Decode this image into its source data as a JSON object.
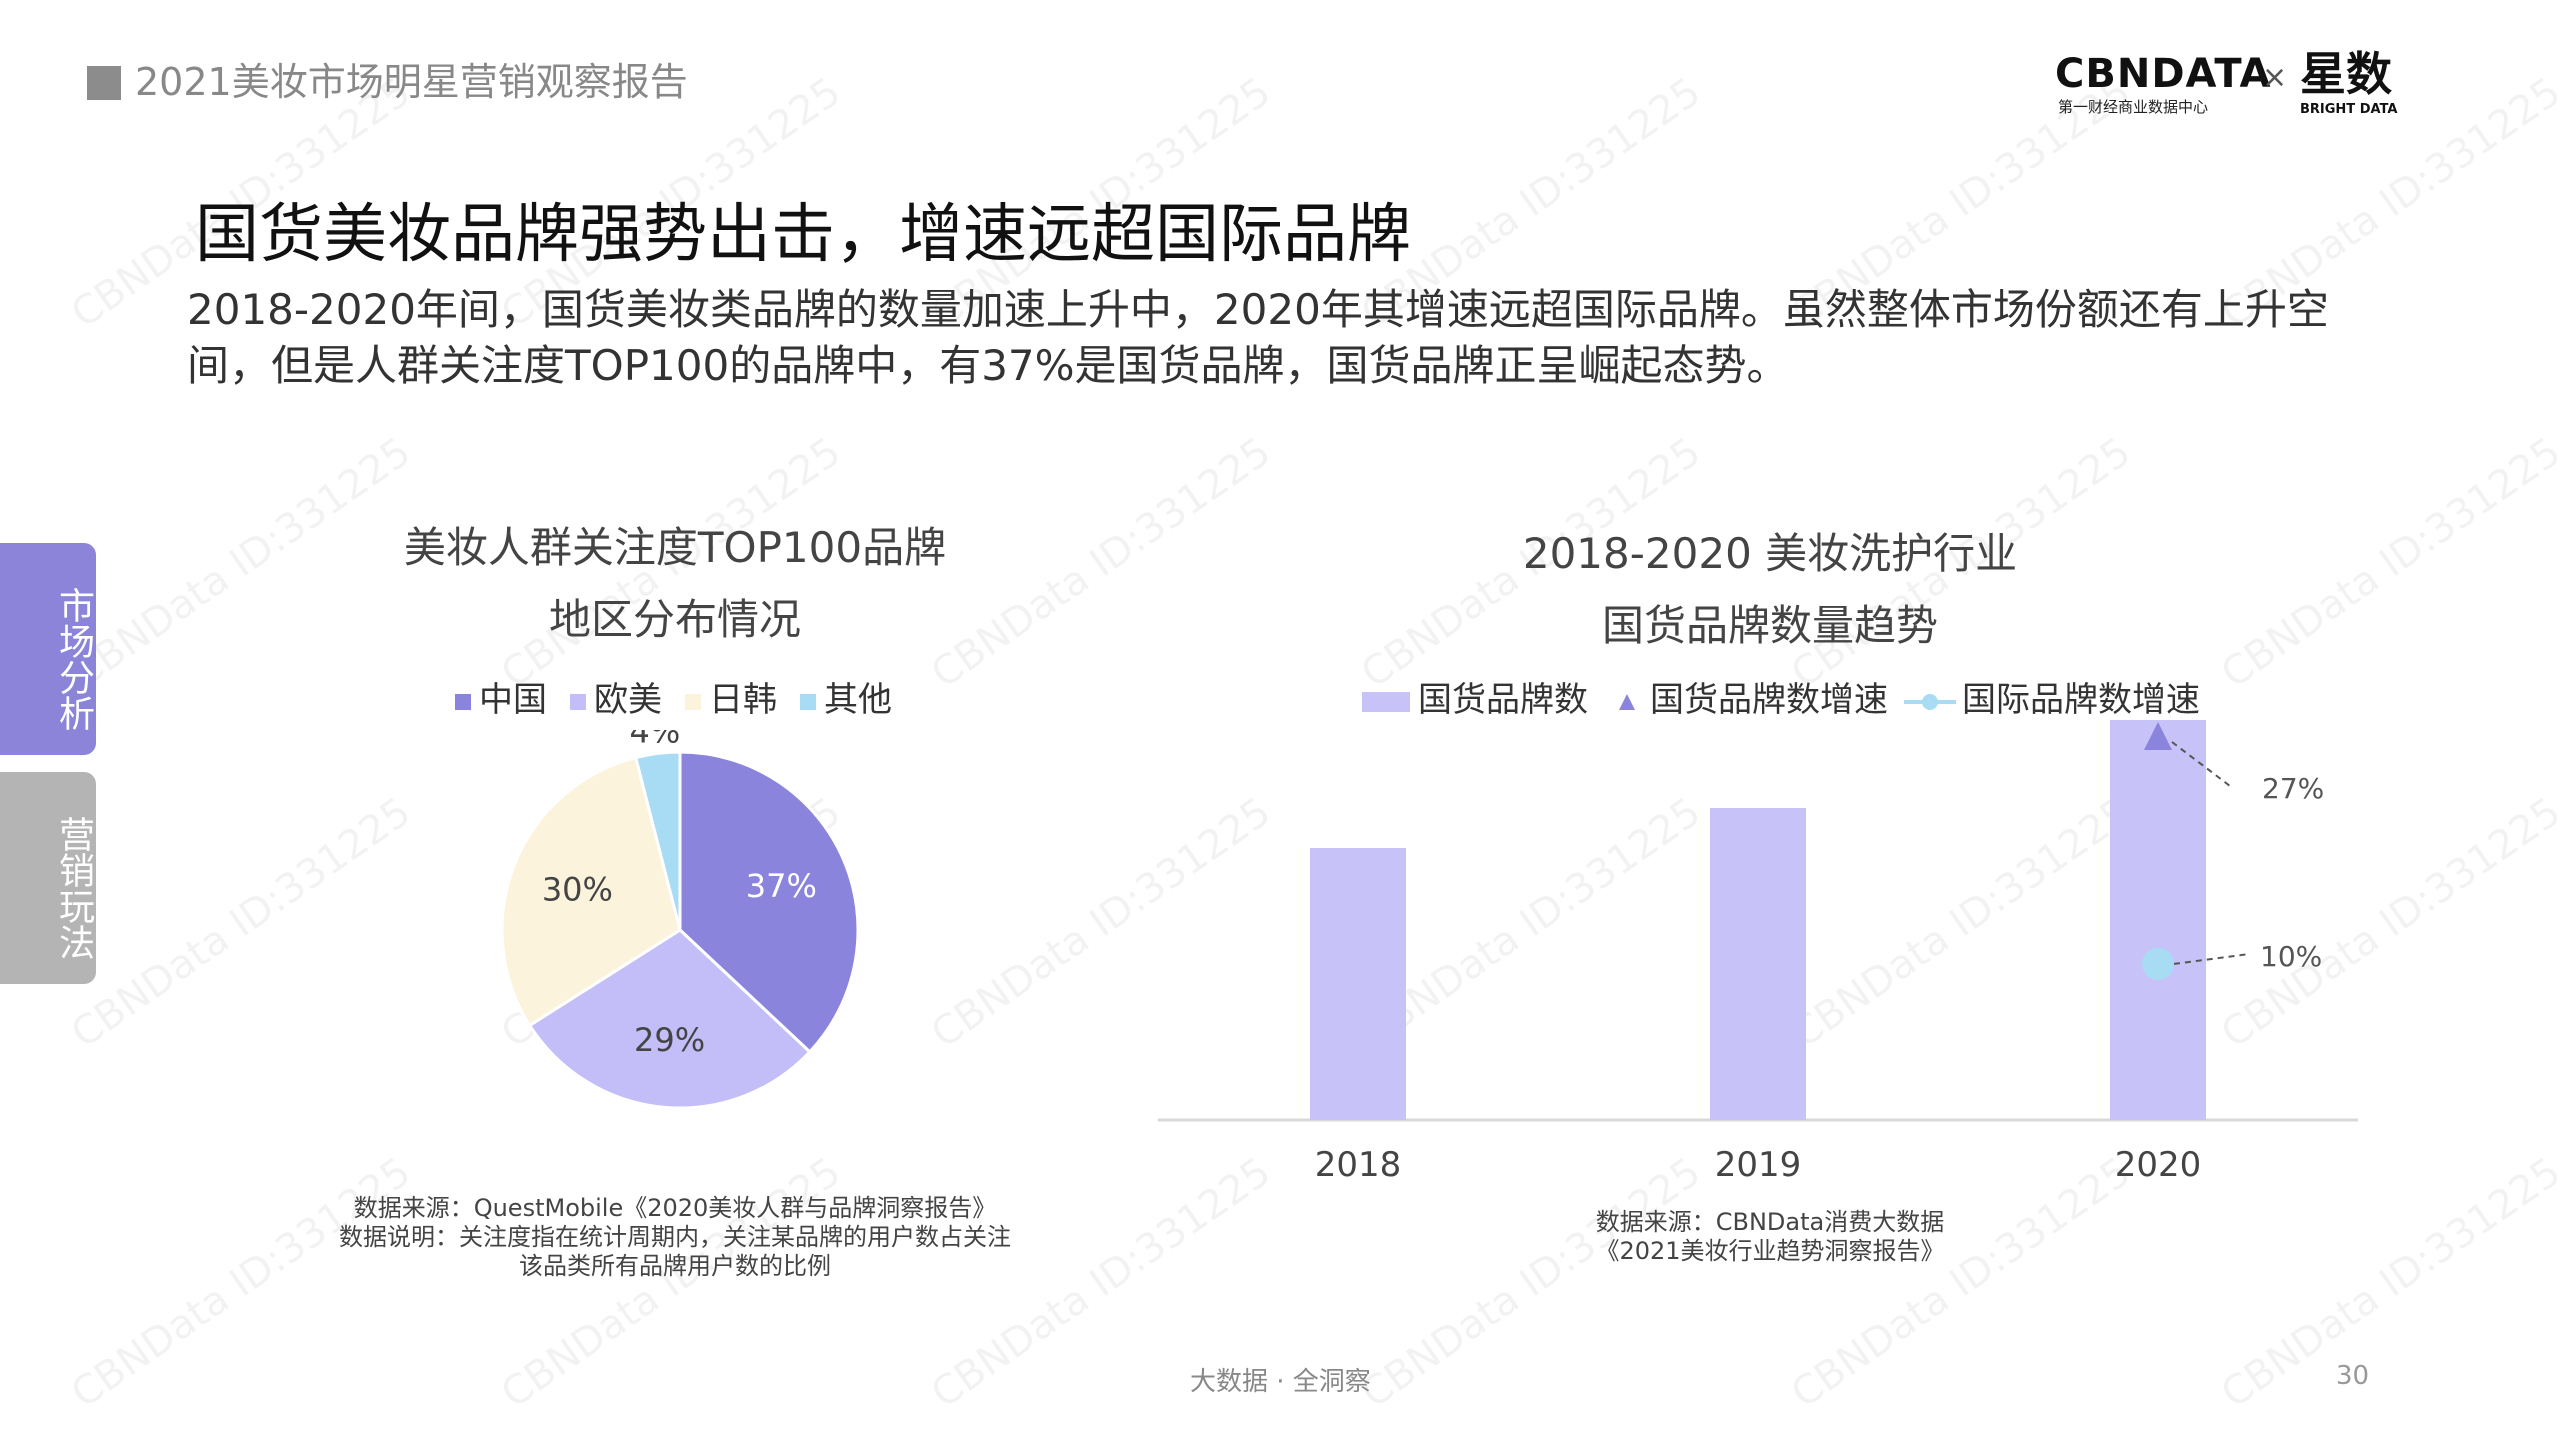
{
  "header": {
    "report_title": "2021美妆市场明星营销观察报告",
    "logo_cbn": "CBNDATA",
    "logo_cbn_sub": "第一财经商业数据中心",
    "logo_times": "×",
    "logo_star": "星数",
    "logo_star_sub": "BRIGHT DATA"
  },
  "main": {
    "title": "国货美妆品牌强势出击，增速远超国际品牌",
    "subtitle": "2018-2020年间，国货美妆类品牌的数量加速上升中，2020年其增速远超国际品牌。虽然整体市场份额还有上升空间，但是人群关注度TOP100的品牌中，有37%是国货品牌，国货品牌正呈崛起态势。"
  },
  "sidebar": {
    "tabs": [
      {
        "label": "市场分析",
        "active": true
      },
      {
        "label": "营销玩法",
        "active": false
      }
    ]
  },
  "watermark_text": "CBNData ID:331225",
  "footer": {
    "slogan": "大数据 · 全洞察",
    "page_number": "30"
  },
  "colors": {
    "china": "#8b84dd",
    "western": "#c3bdf8",
    "jpkr": "#fbf3dc",
    "other": "#a8dcf5",
    "bar": "#c7c2f8",
    "domestic_growth": "#8b84dd",
    "intl_growth": "#a8dcf5"
  },
  "chart_data": [
    {
      "type": "pie",
      "title_line1": "美妆人群关注度TOP100品牌",
      "title_line2": "地区分布情况",
      "legend_position": "top",
      "slices": [
        {
          "label": "中国",
          "value": 37,
          "display": "37%"
        },
        {
          "label": "欧美",
          "value": 29,
          "display": "29%"
        },
        {
          "label": "日韩",
          "value": 30,
          "display": "30%"
        },
        {
          "label": "其他",
          "value": 4,
          "display": "4%"
        }
      ],
      "note_line1": "数据来源：QuestMobile《2020美妆人群与品牌洞察报告》",
      "note_line2": "数据说明：关注度指在统计周期内，关注某品牌的用户数占关注",
      "note_line3": "该品类所有品牌用户数的比例"
    },
    {
      "type": "bar",
      "title_line1": "2018-2020 美妆洗护行业",
      "title_line2": "国货品牌数量趋势",
      "legend_position": "top",
      "categories": [
        "2018",
        "2019",
        "2020"
      ],
      "series": [
        {
          "name": "国货品牌数",
          "kind": "bar",
          "values": [
            0.68,
            0.78,
            1.0
          ]
        },
        {
          "name": "国货品牌数增速",
          "kind": "marker",
          "values": [
            null,
            null,
            27
          ],
          "labels": [
            null,
            null,
            "27%"
          ]
        },
        {
          "name": "国际品牌数增速",
          "kind": "line-marker",
          "values": [
            null,
            null,
            10
          ],
          "labels": [
            null,
            null,
            "10%"
          ]
        }
      ],
      "note_line1": "数据来源：CBNData消费大数据",
      "note_line2": "《2021美妆行业趋势洞察报告》"
    }
  ]
}
